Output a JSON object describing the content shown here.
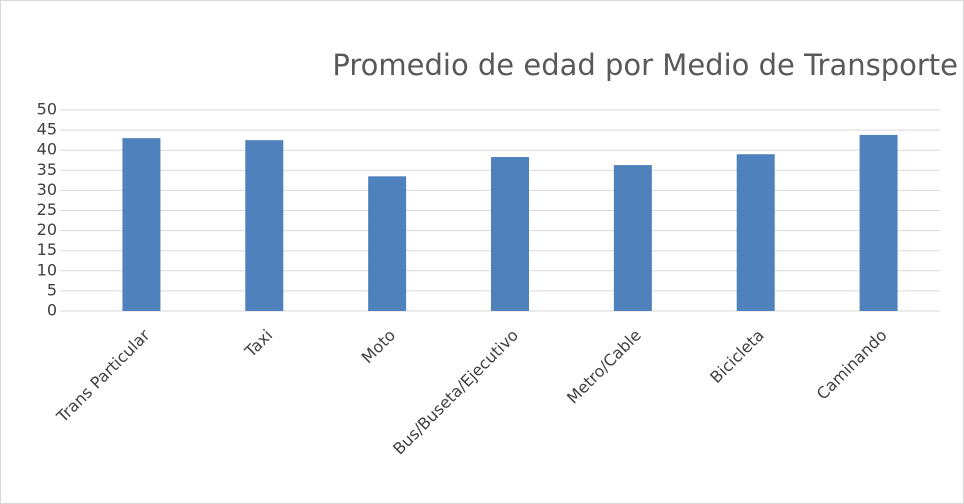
{
  "chart_data": {
    "type": "bar",
    "title": "Promedio de edad por Medio de Transporte",
    "categories": [
      "Trans Particular",
      "Taxi",
      "Moto",
      "Bus/Buseta/Ejecutivo",
      "Metro/Cable",
      "Bicicleta",
      "Caminando"
    ],
    "values": [
      43.0,
      42.5,
      33.5,
      38.3,
      36.3,
      39.0,
      43.8
    ],
    "color": "#4f81bd",
    "ylim": [
      0,
      50
    ],
    "yticks": [
      0,
      5,
      10,
      15,
      20,
      25,
      30,
      35,
      40,
      45,
      50
    ],
    "grid": true
  }
}
